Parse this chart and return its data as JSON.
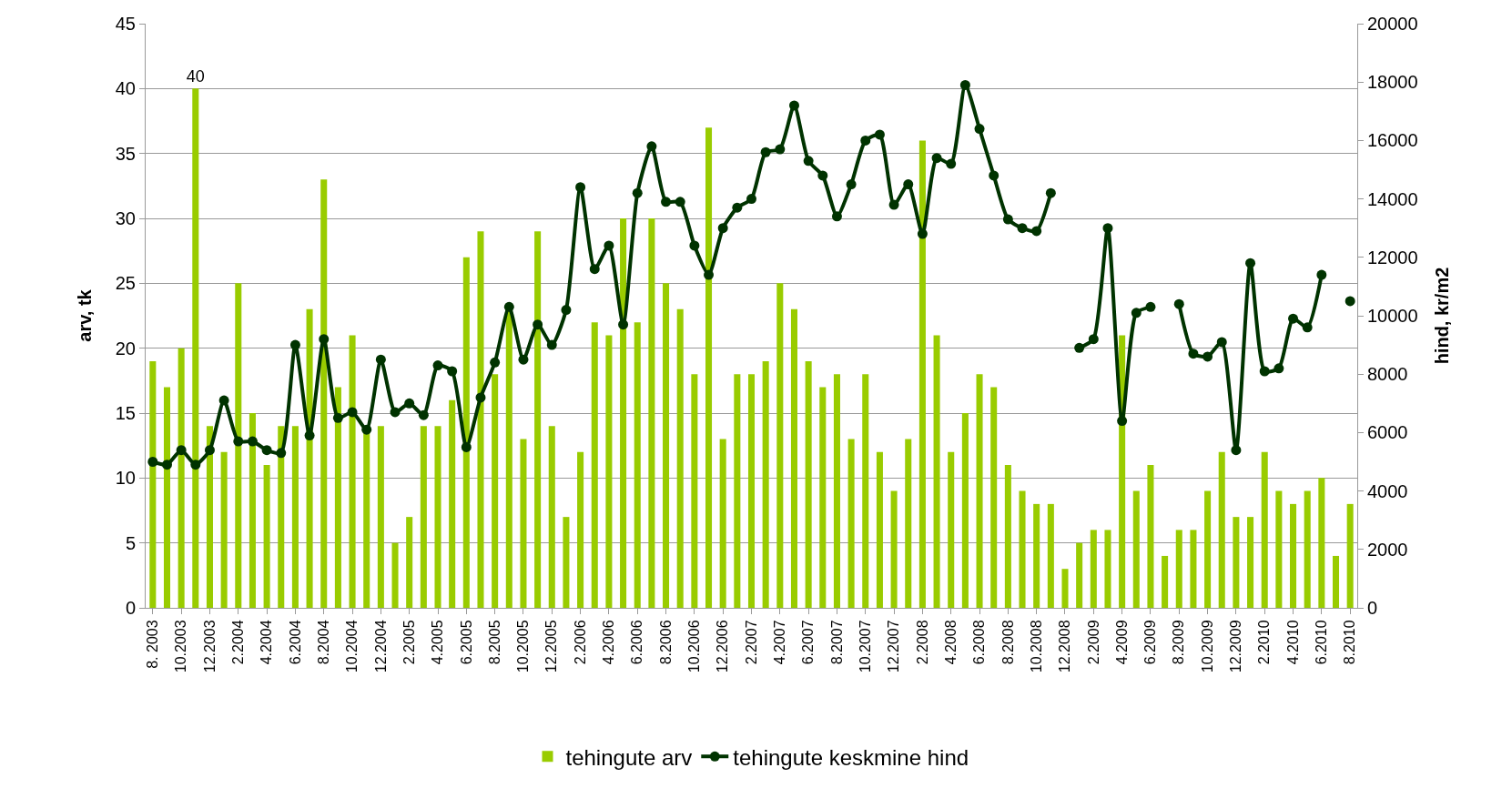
{
  "chart_data": {
    "type": "bar",
    "categories": [
      "8. 2003",
      null,
      "10.2003",
      null,
      "12.2003",
      null,
      "2.2004",
      null,
      "4.2004",
      null,
      "6.2004",
      null,
      "8.2004",
      null,
      "10.2004",
      null,
      "12.2004",
      null,
      "2.2005",
      null,
      "4.2005",
      null,
      "6.2005",
      null,
      "8.2005",
      null,
      "10.2005",
      null,
      "12.2005",
      null,
      "2.2006",
      null,
      "4.2006",
      null,
      "6.2006",
      null,
      "8.2006",
      null,
      "10.2006",
      null,
      "12.2006",
      null,
      "2.2007",
      null,
      "4.2007",
      null,
      "6.2007",
      null,
      "8.2007",
      null,
      "10.2007",
      null,
      "12.2007",
      null,
      "2.2008",
      null,
      "4.2008",
      null,
      "6.2008",
      null,
      "8.2008",
      null,
      "10.2008",
      null,
      "12.2008",
      null,
      "2.2009",
      null,
      "4.2009",
      null,
      "6.2009",
      null,
      "8.2009",
      null,
      "10.2009",
      null,
      "12.2009",
      null,
      "2.2010",
      null,
      "4.2010",
      null,
      "6.2010",
      null,
      "8.2010"
    ],
    "series": [
      {
        "name": "tehingute arv",
        "color": "#99cc00",
        "values": [
          19,
          17,
          20,
          40,
          14,
          12,
          25,
          15,
          11,
          14,
          14,
          23,
          33,
          17,
          21,
          14,
          14,
          5,
          7,
          14,
          14,
          16,
          27,
          29,
          18,
          23,
          13,
          29,
          14,
          7,
          12,
          22,
          21,
          30,
          22,
          30,
          25,
          23,
          18,
          37,
          13,
          18,
          18,
          19,
          25,
          23,
          19,
          17,
          18,
          13,
          18,
          12,
          9,
          13,
          36,
          21,
          12,
          15,
          18,
          17,
          11,
          9,
          8,
          8,
          3,
          5,
          6,
          6,
          21,
          9,
          11,
          4,
          6,
          6,
          9,
          12,
          7,
          7,
          12,
          9,
          8,
          9,
          10,
          4,
          8
        ],
        "value_labels": [
          null,
          null,
          null,
          "40",
          null,
          null,
          null,
          null,
          null,
          null,
          null,
          null,
          null,
          null,
          null,
          null,
          null,
          null,
          null,
          null,
          null,
          null,
          null,
          null,
          null,
          null,
          null,
          null,
          null,
          null,
          null,
          null,
          null,
          null,
          null,
          null,
          null,
          null,
          null,
          null,
          null,
          null,
          null,
          null,
          null,
          null,
          null,
          null,
          null,
          null,
          null,
          null,
          null,
          null,
          null,
          null,
          null,
          null,
          null,
          null,
          null,
          null,
          null,
          null,
          null,
          null,
          null,
          null,
          null,
          null,
          null,
          null,
          null,
          null,
          null,
          null,
          null,
          null,
          null,
          null,
          null,
          null,
          null,
          null,
          null
        ]
      },
      {
        "name": "tehingute keskmine hind",
        "type": "line",
        "axis": "y2",
        "color": "#003300",
        "values": [
          5000,
          4900,
          5400,
          4900,
          5400,
          7100,
          5700,
          5700,
          5400,
          5300,
          9000,
          5900,
          9200,
          6500,
          6700,
          6100,
          8500,
          6700,
          7000,
          6600,
          8300,
          8100,
          5500,
          7200,
          8400,
          10300,
          8500,
          9700,
          9000,
          10200,
          14400,
          11600,
          12400,
          9700,
          14200,
          15800,
          13900,
          13900,
          12400,
          11400,
          13000,
          13700,
          14000,
          15600,
          15700,
          17200,
          15300,
          14800,
          13400,
          14500,
          16000,
          16200,
          13800,
          14500,
          12800,
          15400,
          15200,
          17900,
          16400,
          14800,
          13300,
          13000,
          12900,
          14200,
          null,
          8900,
          9200,
          13000,
          6400,
          10100,
          10300,
          null,
          10400,
          8700,
          8600,
          9100,
          5400,
          11800,
          8100,
          8200,
          9900,
          9600,
          11400,
          null,
          10500
        ]
      }
    ],
    "ylabel": "arv, tk",
    "y2label": "hind, kr/m2",
    "ylim": [
      0,
      45
    ],
    "yticks": [
      0,
      5,
      10,
      15,
      20,
      25,
      30,
      35,
      40,
      45
    ],
    "y2lim": [
      0,
      20000
    ],
    "y2ticks": [
      0,
      2000,
      4000,
      6000,
      8000,
      10000,
      12000,
      14000,
      16000,
      18000,
      20000
    ],
    "grid": "y",
    "legend": "bottom",
    "marker": "circle",
    "line_style": "solid"
  }
}
